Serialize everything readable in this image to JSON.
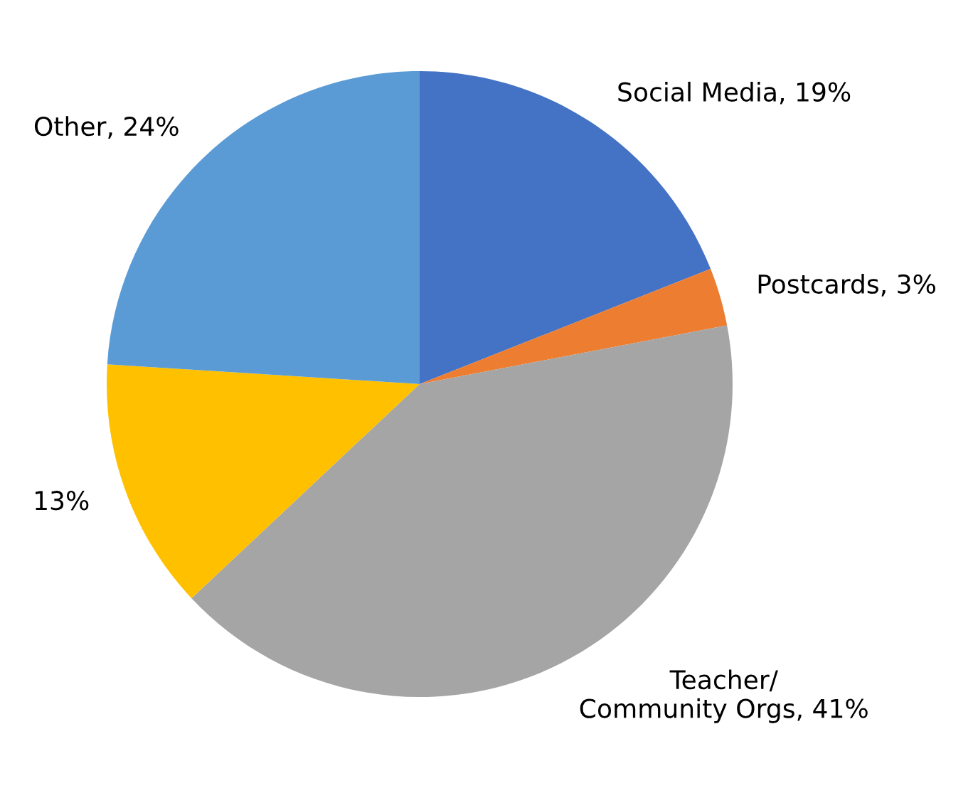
{
  "chart_data": {
    "type": "pie",
    "categories": [
      "Social Media",
      "Postcards",
      "Teacher/\nCommunity Orgs",
      null,
      "Other"
    ],
    "values": [
      19,
      3,
      41,
      13,
      24
    ],
    "value_labels": [
      "19%",
      "3%",
      "41%",
      "13%",
      "24%"
    ],
    "colors": [
      "#4472c4",
      "#ed7d31",
      "#a5a5a5",
      "#ffc000",
      "#5b9bd5"
    ],
    "legend": false
  }
}
